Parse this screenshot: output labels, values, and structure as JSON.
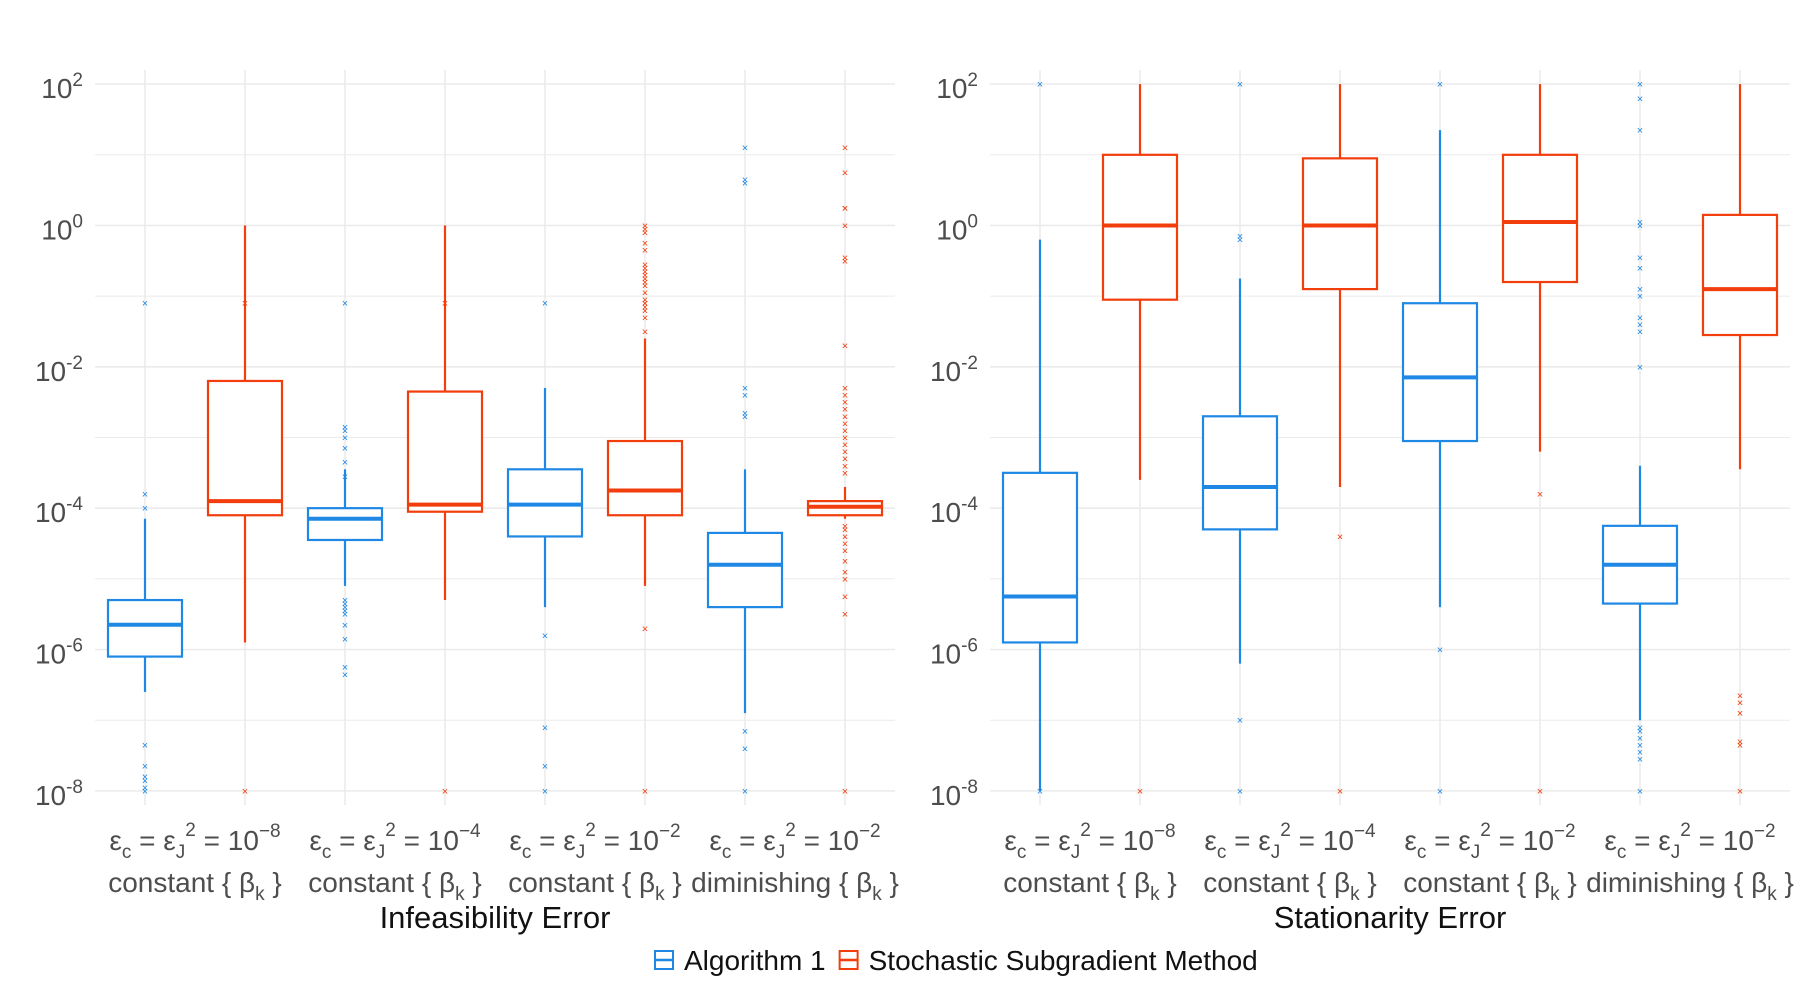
{
  "chart_data": {
    "type": "boxplot",
    "y_scale": "log10",
    "ylim_exponent": [
      -8.2,
      2.2
    ],
    "y_ticks": [
      {
        "exp": 2,
        "label": "2"
      },
      {
        "exp": 0,
        "label": "0"
      },
      {
        "exp": -2,
        "label": "-2"
      },
      {
        "exp": -4,
        "label": "-4"
      },
      {
        "exp": -6,
        "label": "-6"
      },
      {
        "exp": -8,
        "label": "-8"
      }
    ],
    "y_tick_base": "10",
    "colors": {
      "algorithm1": "#1f88e5",
      "ssm": "#f23d0c",
      "grid": "#ebebeb"
    },
    "legend": [
      {
        "key": "algorithm1",
        "label": "Algorithm 1"
      },
      {
        "key": "ssm",
        "label": "Stochastic Subgradient Method"
      }
    ],
    "category_labels": [
      {
        "line1": "ε_c = ε_J^2 = 10^{−8}",
        "eps": "c",
        "eq": " = ",
        "eps2": "J",
        "sq": "2",
        "pow": "−8",
        "step": "constant",
        "beta": "β",
        "k": "k"
      },
      {
        "line1": "ε_c = ε_J^2 = 10^{−4}",
        "eps": "c",
        "eq": " = ",
        "eps2": "J",
        "sq": "2",
        "pow": "−4",
        "step": "constant",
        "beta": "β",
        "k": "k"
      },
      {
        "line1": "ε_c = ε_J^2 = 10^{−2}",
        "eps": "c",
        "eq": " = ",
        "eps2": "J",
        "sq": "2",
        "pow": "−2",
        "step": "constant",
        "beta": "β",
        "k": "k"
      },
      {
        "line1": "ε_c = ε_J^2 = 10^{−2}",
        "eps": "c",
        "eq": " = ",
        "eps2": "J",
        "sq": "2",
        "pow": "−2",
        "step": "diminishing",
        "beta": "β",
        "k": "k"
      }
    ],
    "panels": [
      {
        "title": "Infeasibility Error",
        "groups": [
          {
            "algorithm1": {
              "whisker_low": -6.6,
              "q1": -6.1,
              "median": -5.65,
              "q3": -5.3,
              "whisker_high": -4.15,
              "outliers": [
                -7.35,
                -7.65,
                -7.8,
                -7.85,
                -7.95,
                -8.0,
                -4.0,
                -3.8,
                -1.1
              ]
            },
            "ssm": {
              "whisker_low": -5.9,
              "q1": -4.1,
              "median": -3.9,
              "q3": -2.2,
              "whisker_high": 0.0,
              "outliers": [
                -8.0,
                -1.1
              ]
            }
          },
          {
            "algorithm1": {
              "whisker_low": -5.1,
              "q1": -4.45,
              "median": -4.15,
              "q3": -4.0,
              "whisker_high": -3.45,
              "outliers": [
                -5.3,
                -5.35,
                -5.4,
                -5.45,
                -5.5,
                -5.65,
                -5.85,
                -6.25,
                -6.35,
                -3.55,
                -3.35,
                -3.15,
                -3.0,
                -2.9,
                -2.85,
                -1.1
              ]
            },
            "ssm": {
              "whisker_low": -5.3,
              "q1": -4.05,
              "median": -3.95,
              "q3": -2.35,
              "whisker_high": 0.0,
              "outliers": [
                -8.0,
                -1.1
              ]
            }
          },
          {
            "algorithm1": {
              "whisker_low": -5.4,
              "q1": -4.4,
              "median": -3.95,
              "q3": -3.45,
              "whisker_high": -2.3,
              "outliers": [
                -8.0,
                -7.65,
                -7.1,
                -5.8,
                -1.1
              ]
            },
            "ssm": {
              "whisker_low": -5.1,
              "q1": -4.1,
              "median": -3.75,
              "q3": -3.05,
              "whisker_high": -1.6,
              "outliers": [
                -8.0,
                -5.7,
                -1.5,
                -1.3,
                -1.2,
                -1.15,
                -1.1,
                -1.05,
                -0.95,
                -0.85,
                -0.8,
                -0.75,
                -0.7,
                -0.65,
                -0.6,
                -0.55,
                -0.35,
                -0.25,
                -0.1,
                -0.05,
                0.0,
                -1.1
              ]
            },
            "ssm_extra_outliers": [
              -1.1
            ]
          },
          {
            "algorithm1": {
              "whisker_low": -6.9,
              "q1": -5.4,
              "median": -4.8,
              "q3": -4.35,
              "whisker_high": -3.45,
              "outliers": [
                -8.0,
                -7.4,
                -7.15,
                -2.7,
                -2.65,
                -2.4,
                -2.3,
                0.6,
                0.65,
                1.1
              ]
            },
            "ssm": {
              "whisker_low": -4.15,
              "q1": -4.1,
              "median": -3.98,
              "q3": -3.9,
              "whisker_high": -3.7,
              "outliers": [
                -8.0,
                -5.5,
                -5.25,
                -5.0,
                -4.9,
                -4.75,
                -4.6,
                -4.5,
                -4.4,
                -4.3,
                -4.25,
                -3.5,
                -3.4,
                -3.3,
                -3.2,
                -3.1,
                -3.0,
                -2.9,
                -2.8,
                -2.7,
                -2.6,
                -2.5,
                -2.4,
                -2.3,
                -1.7,
                -0.5,
                -0.45,
                0.0,
                0.25,
                0.25,
                0.75,
                1.1
              ]
            }
          }
        ]
      },
      {
        "title": "Stationarity Error",
        "groups": [
          {
            "algorithm1": {
              "whisker_low": -8.0,
              "q1": -5.9,
              "median": -5.25,
              "q3": -3.5,
              "whisker_high": -0.2,
              "outliers": [
                -8.0,
                2.0
              ]
            },
            "ssm": {
              "whisker_low": -3.6,
              "q1": -1.05,
              "median": 0.0,
              "q3": 1.0,
              "whisker_high": 2.0,
              "outliers": [
                -8.0
              ]
            }
          },
          {
            "algorithm1": {
              "whisker_low": -6.2,
              "q1": -4.3,
              "median": -3.7,
              "q3": -2.7,
              "whisker_high": -0.75,
              "outliers": [
                -8.0,
                -7.0,
                -0.2,
                -0.15,
                2.0
              ]
            },
            "ssm": {
              "whisker_low": -3.7,
              "q1": -0.9,
              "median": 0.0,
              "q3": 0.95,
              "whisker_high": 2.0,
              "outliers": [
                -8.0,
                -4.4
              ]
            }
          },
          {
            "algorithm1": {
              "whisker_low": -5.4,
              "q1": -3.05,
              "median": -2.15,
              "q3": -1.1,
              "whisker_high": 1.35,
              "outliers": [
                -8.0,
                -6.0,
                2.0
              ]
            },
            "ssm": {
              "whisker_low": -3.2,
              "q1": -0.8,
              "median": 0.05,
              "q3": 1.0,
              "whisker_high": 2.0,
              "outliers": [
                -8.0,
                -3.8
              ]
            }
          },
          {
            "algorithm1": {
              "whisker_low": -7.0,
              "q1": -5.35,
              "median": -4.8,
              "q3": -4.25,
              "whisker_high": -3.4,
              "outliers": [
                -8.0,
                -7.55,
                -7.45,
                -7.35,
                -7.25,
                -7.15,
                -7.1,
                -2.0,
                -1.5,
                -1.4,
                -1.3,
                -1.0,
                -0.9,
                -0.6,
                -0.45,
                0.0,
                0.05,
                1.35,
                1.8,
                2.0
              ]
            },
            "ssm": {
              "whisker_low": -3.45,
              "q1": -1.55,
              "median": -0.9,
              "q3": 0.15,
              "whisker_high": 2.0,
              "outliers": [
                -8.0,
                -7.35,
                -7.3,
                -6.9,
                -6.75,
                -6.65
              ]
            }
          }
        ]
      }
    ]
  }
}
